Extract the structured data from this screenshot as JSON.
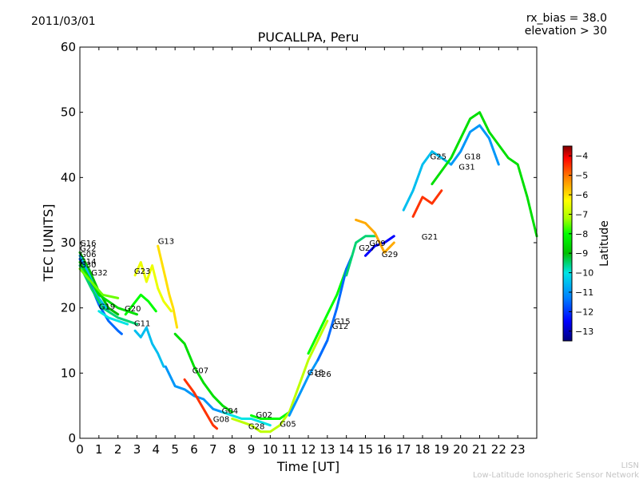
{
  "header": {
    "date": "2011/03/01",
    "rx_bias": "rx_bias = 38.0",
    "elevation": "elevation > 30"
  },
  "footer": {
    "short": "LISN",
    "long": "Low-Latitude Ionospheric Sensor Network"
  },
  "chart_data": {
    "type": "scatter",
    "title": "PUCALLPA, Peru",
    "xlabel": "Time [UT]",
    "ylabel": "TEC [UNITS]",
    "xlim": [
      0,
      24
    ],
    "ylim": [
      0,
      60
    ],
    "xticks": [
      0,
      1,
      2,
      3,
      4,
      5,
      6,
      7,
      8,
      9,
      10,
      11,
      12,
      13,
      14,
      15,
      16,
      17,
      18,
      19,
      20,
      21,
      22,
      23
    ],
    "yticks": [
      0,
      10,
      20,
      30,
      40,
      50,
      60
    ],
    "colorbar": {
      "label": "Latitude",
      "range": [
        -13.5,
        -3.5
      ],
      "ticks": [
        -4,
        -5,
        -6,
        -7,
        -8,
        -9,
        -10,
        -11,
        -12,
        -13
      ],
      "colors": [
        "#00007f",
        "#0000ff",
        "#007fff",
        "#00e5e5",
        "#00c000",
        "#00ff00",
        "#aaff00",
        "#ffff00",
        "#ff7f00",
        "#ff0000",
        "#7f0000"
      ]
    },
    "series": [
      {
        "name": "G16",
        "lat": -9.0,
        "points": [
          [
            0.0,
            28.5
          ],
          [
            0.5,
            25.8
          ],
          [
            1.0,
            22.5
          ],
          [
            1.5,
            20.0
          ],
          [
            2.0,
            19.0
          ]
        ]
      },
      {
        "name": "G22",
        "lat": -10.5,
        "points": [
          [
            0.0,
            28.0
          ],
          [
            0.5,
            25.0
          ],
          [
            1.0,
            21.5
          ],
          [
            1.5,
            19.5
          ]
        ]
      },
      {
        "name": "G06",
        "lat": -11.5,
        "points": [
          [
            0.0,
            27.5
          ],
          [
            0.5,
            24.0
          ],
          [
            1.0,
            20.5
          ],
          [
            1.5,
            18.0
          ],
          [
            2.0,
            16.5
          ],
          [
            2.2,
            16.0
          ]
        ]
      },
      {
        "name": "G14",
        "lat": -8.5,
        "points": [
          [
            0.0,
            27.0
          ],
          [
            0.5,
            24.5
          ],
          [
            1.0,
            22.0
          ],
          [
            1.5,
            21.0
          ],
          [
            2.0,
            20.0
          ],
          [
            3.0,
            19.0
          ]
        ]
      },
      {
        "name": "G30",
        "lat": -9.5,
        "points": [
          [
            0.0,
            26.5
          ],
          [
            0.6,
            23.0
          ],
          [
            1.2,
            20.0
          ],
          [
            2.0,
            18.5
          ],
          [
            3.0,
            17.5
          ]
        ]
      },
      {
        "name": "G32",
        "lat": -7.5,
        "points": [
          [
            0.0,
            26.0
          ],
          [
            0.6,
            24.0
          ],
          [
            1.2,
            22.0
          ],
          [
            2.0,
            21.5
          ]
        ]
      },
      {
        "name": "G19",
        "lat": -10.0,
        "points": [
          [
            1.0,
            19.5
          ],
          [
            1.5,
            18.5
          ],
          [
            2.0,
            18.0
          ],
          [
            2.5,
            17.5
          ]
        ]
      },
      {
        "name": "G20",
        "lat": -8.0,
        "points": [
          [
            2.4,
            19.0
          ],
          [
            2.8,
            20.5
          ],
          [
            3.2,
            22.0
          ],
          [
            3.6,
            21.0
          ],
          [
            4.0,
            19.5
          ]
        ]
      },
      {
        "name": "G23",
        "lat": -6.5,
        "points": [
          [
            2.9,
            25.0
          ],
          [
            3.2,
            27.0
          ],
          [
            3.5,
            24.0
          ],
          [
            3.8,
            26.5
          ],
          [
            4.1,
            23.0
          ],
          [
            4.4,
            21.0
          ],
          [
            4.8,
            19.5
          ]
        ]
      },
      {
        "name": "G11",
        "lat": -10.5,
        "points": [
          [
            2.9,
            16.5
          ],
          [
            3.2,
            15.5
          ],
          [
            3.5,
            17.0
          ],
          [
            3.8,
            14.5
          ],
          [
            4.1,
            13.0
          ],
          [
            4.4,
            11.0
          ]
        ]
      },
      {
        "name": "G13",
        "lat": -6.0,
        "points": [
          [
            4.1,
            29.5
          ],
          [
            4.3,
            27.0
          ],
          [
            4.5,
            24.5
          ],
          [
            4.7,
            22.0
          ],
          [
            4.9,
            20.0
          ],
          [
            5.1,
            17.0
          ]
        ]
      },
      {
        "name": "G07",
        "lat": -8.5,
        "points": [
          [
            5.0,
            16.0
          ],
          [
            5.5,
            14.5
          ],
          [
            6.0,
            11.0
          ],
          [
            6.5,
            8.5
          ],
          [
            7.0,
            6.5
          ],
          [
            7.5,
            5.0
          ],
          [
            8.0,
            4.0
          ]
        ]
      },
      {
        "name": "G04",
        "lat": -11.0,
        "points": [
          [
            4.5,
            11.0
          ],
          [
            5.0,
            8.0
          ],
          [
            5.5,
            7.5
          ],
          [
            6.0,
            6.5
          ],
          [
            6.5,
            6.0
          ],
          [
            7.0,
            4.5
          ],
          [
            7.5,
            4.0
          ]
        ]
      },
      {
        "name": "G08",
        "lat": -4.5,
        "points": [
          [
            5.5,
            9.0
          ],
          [
            6.0,
            7.0
          ],
          [
            6.5,
            4.5
          ],
          [
            7.0,
            2.0
          ],
          [
            7.2,
            1.5
          ]
        ]
      },
      {
        "name": "G02",
        "lat": -10.0,
        "points": [
          [
            7.5,
            4.0
          ],
          [
            8.0,
            3.5
          ],
          [
            8.5,
            3.0
          ],
          [
            9.0,
            3.0
          ],
          [
            9.5,
            2.5
          ],
          [
            10.0,
            2.0
          ]
        ]
      },
      {
        "name": "G28",
        "lat": -7.0,
        "points": [
          [
            8.0,
            3.0
          ],
          [
            8.5,
            2.5
          ],
          [
            9.0,
            2.0
          ],
          [
            9.5,
            1.0
          ],
          [
            10.0,
            1.0
          ],
          [
            10.5,
            2.0
          ]
        ]
      },
      {
        "name": "G05",
        "lat": -8.0,
        "points": [
          [
            9.0,
            3.5
          ],
          [
            9.5,
            3.0
          ],
          [
            10.0,
            3.0
          ],
          [
            10.5,
            3.0
          ],
          [
            11.0,
            4.0
          ]
        ]
      },
      {
        "name": "G18",
        "lat": -7.0,
        "points": [
          [
            10.5,
            2.0
          ],
          [
            11.0,
            4.0
          ],
          [
            11.5,
            8.0
          ],
          [
            12.0,
            12.0
          ],
          [
            12.5,
            15.0
          ],
          [
            13.0,
            18.0
          ]
        ]
      },
      {
        "name": "G26",
        "lat": -11.0,
        "points": [
          [
            11.0,
            3.5
          ],
          [
            11.5,
            6.5
          ],
          [
            12.0,
            9.5
          ],
          [
            12.5,
            12.0
          ],
          [
            13.0,
            15.0
          ]
        ]
      },
      {
        "name": "G12",
        "lat": -8.0,
        "points": [
          [
            12.0,
            13.0
          ],
          [
            12.5,
            16.0
          ],
          [
            13.0,
            19.0
          ],
          [
            13.5,
            22.0
          ],
          [
            14.0,
            26.0
          ]
        ]
      },
      {
        "name": "G15",
        "lat": -11.5,
        "points": [
          [
            12.5,
            12.0
          ],
          [
            13.0,
            15.0
          ],
          [
            13.5,
            20.0
          ],
          [
            14.0,
            26.0
          ],
          [
            14.3,
            28.0
          ]
        ]
      },
      {
        "name": "G27",
        "lat": -9.5,
        "points": [
          [
            14.0,
            25.0
          ],
          [
            14.5,
            30.0
          ],
          [
            15.0,
            31.0
          ],
          [
            15.5,
            31.0
          ]
        ]
      },
      {
        "name": "G09",
        "lat": -12.5,
        "points": [
          [
            15.0,
            28.0
          ],
          [
            15.5,
            29.5
          ],
          [
            16.0,
            30.0
          ],
          [
            16.5,
            31.0
          ]
        ]
      },
      {
        "name": "G29",
        "lat": -5.5,
        "points": [
          [
            14.5,
            33.5
          ],
          [
            15.0,
            33.0
          ],
          [
            15.5,
            31.5
          ],
          [
            16.0,
            28.5
          ],
          [
            16.5,
            30.0
          ]
        ]
      },
      {
        "name": "G21",
        "lat": -4.5,
        "points": [
          [
            17.5,
            34.0
          ],
          [
            18.0,
            37.0
          ],
          [
            18.5,
            36.0
          ],
          [
            19.0,
            38.0
          ]
        ]
      },
      {
        "name": "G25",
        "lat": -10.5,
        "points": [
          [
            17.0,
            35.0
          ],
          [
            17.5,
            38.0
          ],
          [
            18.0,
            42.0
          ],
          [
            18.5,
            44.0
          ],
          [
            19.0,
            43.0
          ],
          [
            19.5,
            42.0
          ]
        ]
      },
      {
        "name": "G31",
        "lat": -11.0,
        "points": [
          [
            19.5,
            42.0
          ],
          [
            20.0,
            44.0
          ],
          [
            20.5,
            47.0
          ],
          [
            21.0,
            48.0
          ],
          [
            21.5,
            46.0
          ],
          [
            22.0,
            42.0
          ]
        ]
      },
      {
        "name": "G17",
        "lat": -8.5,
        "points": [
          [
            18.5,
            39.0
          ],
          [
            19.5,
            43.0
          ],
          [
            20.5,
            49.0
          ],
          [
            21.0,
            50.0
          ],
          [
            21.5,
            47.0
          ],
          [
            22.5,
            43.0
          ],
          [
            23.0,
            42.0
          ],
          [
            23.5,
            37.0
          ],
          [
            24.0,
            31.0
          ]
        ]
      }
    ],
    "labels": [
      {
        "text": "G16",
        "x": 0.0,
        "y": 29.5
      },
      {
        "text": "G22",
        "x": 0.0,
        "y": 28.7
      },
      {
        "text": "G06",
        "x": 0.0,
        "y": 27.8
      },
      {
        "text": "G14",
        "x": 0.0,
        "y": 26.7
      },
      {
        "text": "G30",
        "x": 0.0,
        "y": 26.2
      },
      {
        "text": "G32",
        "x": 0.6,
        "y": 25.0
      },
      {
        "text": "G19",
        "x": 1.0,
        "y": 19.8
      },
      {
        "text": "G20",
        "x": 2.35,
        "y": 19.5
      },
      {
        "text": "G23",
        "x": 2.85,
        "y": 25.2
      },
      {
        "text": "G11",
        "x": 2.85,
        "y": 17.2
      },
      {
        "text": "G13",
        "x": 4.1,
        "y": 29.8
      },
      {
        "text": "G07",
        "x": 5.9,
        "y": 10.0
      },
      {
        "text": "G04",
        "x": 7.45,
        "y": 3.8
      },
      {
        "text": "G08",
        "x": 7.0,
        "y": 2.5
      },
      {
        "text": "G02",
        "x": 9.25,
        "y": 3.2
      },
      {
        "text": "G28",
        "x": 8.85,
        "y": 1.4
      },
      {
        "text": "G05",
        "x": 10.5,
        "y": 1.8
      },
      {
        "text": "G18",
        "x": 11.95,
        "y": 9.7
      },
      {
        "text": "G26",
        "x": 12.35,
        "y": 9.4
      },
      {
        "text": "G12",
        "x": 13.25,
        "y": 16.8
      },
      {
        "text": "G15",
        "x": 13.35,
        "y": 17.5
      },
      {
        "text": "G27",
        "x": 14.65,
        "y": 28.8
      },
      {
        "text": "G09",
        "x": 15.2,
        "y": 29.5
      },
      {
        "text": "G29",
        "x": 15.85,
        "y": 27.8
      },
      {
        "text": "G21",
        "x": 17.95,
        "y": 30.5
      },
      {
        "text": "G25",
        "x": 18.4,
        "y": 42.8
      },
      {
        "text": "G31",
        "x": 19.9,
        "y": 41.2
      },
      {
        "text": "G18",
        "x": 20.2,
        "y": 42.8
      }
    ]
  }
}
